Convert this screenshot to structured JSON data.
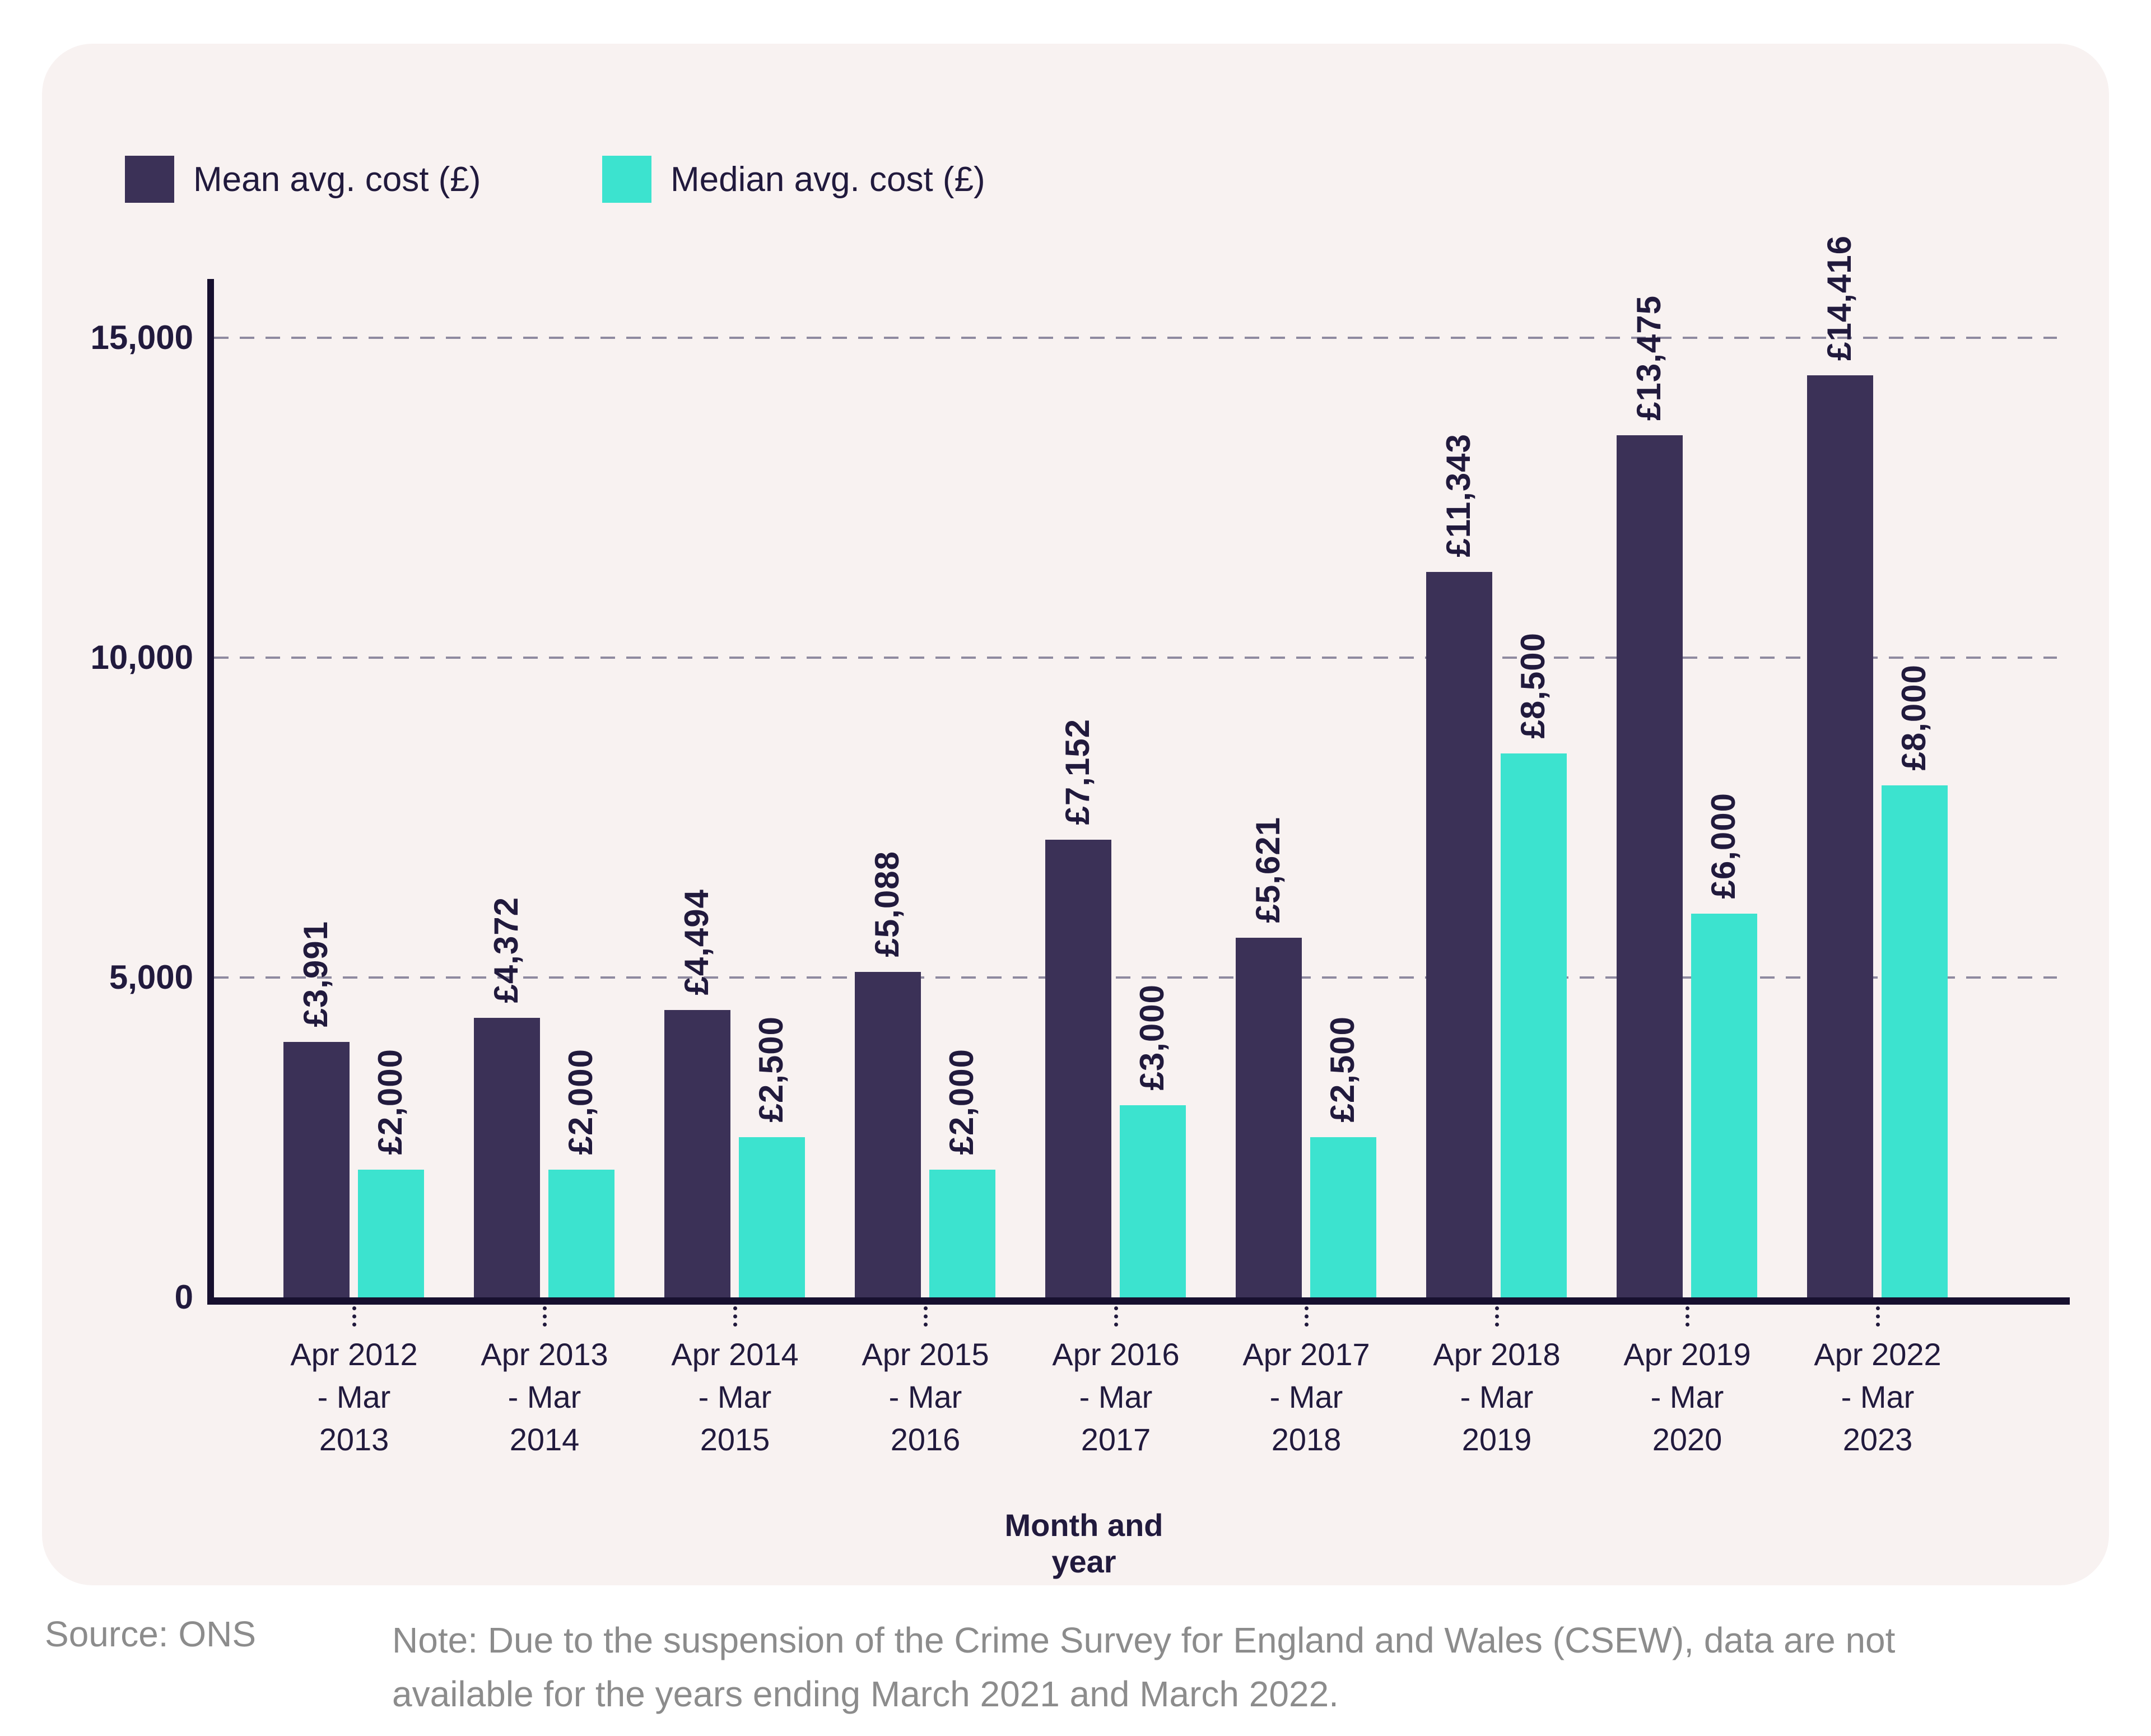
{
  "legend": [
    {
      "label": "Mean avg. cost (£)",
      "color": "#3b3157"
    },
    {
      "label": "Median avg. cost (£)",
      "color": "#3ce3cf"
    }
  ],
  "chart_data": {
    "type": "bar",
    "categories": [
      [
        "Apr 2012",
        "- Mar",
        "2013"
      ],
      [
        "Apr 2013",
        "- Mar",
        "2014"
      ],
      [
        "Apr 2014",
        "- Mar",
        "2015"
      ],
      [
        "Apr 2015",
        "- Mar",
        "2016"
      ],
      [
        "Apr 2016",
        "- Mar",
        "2017"
      ],
      [
        "Apr 2017",
        "- Mar",
        "2018"
      ],
      [
        "Apr 2018",
        "- Mar",
        "2019"
      ],
      [
        "Apr 2019",
        "- Mar",
        "2020"
      ],
      [
        "Apr 2022",
        "- Mar",
        "2023"
      ]
    ],
    "series": [
      {
        "name": "Mean avg. cost (£)",
        "color": "#3b3157",
        "values": [
          3991,
          4372,
          4494,
          5088,
          7152,
          5621,
          11343,
          13475,
          14416
        ],
        "labels": [
          "£3,991",
          "£4,372",
          "£4,494",
          "£5,088",
          "£7,152",
          "£5,621",
          "£11,343",
          "£13,475",
          "£14,416"
        ]
      },
      {
        "name": "Median avg. cost (£)",
        "color": "#3ce3cf",
        "values": [
          2000,
          2000,
          2500,
          2000,
          3000,
          2500,
          8500,
          6000,
          8000
        ],
        "labels": [
          "£2,000",
          "£2,000",
          "£2,500",
          "£2,000",
          "£3,000",
          "£2,500",
          "£8,500",
          "£6,000",
          "£8,000"
        ]
      }
    ],
    "xlabel": "Month and year",
    "ylabel": "",
    "ylim": [
      0,
      15400
    ],
    "grid": "dashed horizontal",
    "legend_position": "top-left",
    "y_ticks": [
      {
        "value": 0,
        "label": "0"
      },
      {
        "value": 5000,
        "label": "5,000"
      },
      {
        "value": 10000,
        "label": "10,000"
      },
      {
        "value": 15000,
        "label": "15,000"
      }
    ]
  },
  "footer": {
    "source": "Source: ONS",
    "note": "Note: Due to the suspension of the Crime Survey for England and Wales (CSEW), data are not available for the years ending March 2021 and March 2022."
  }
}
